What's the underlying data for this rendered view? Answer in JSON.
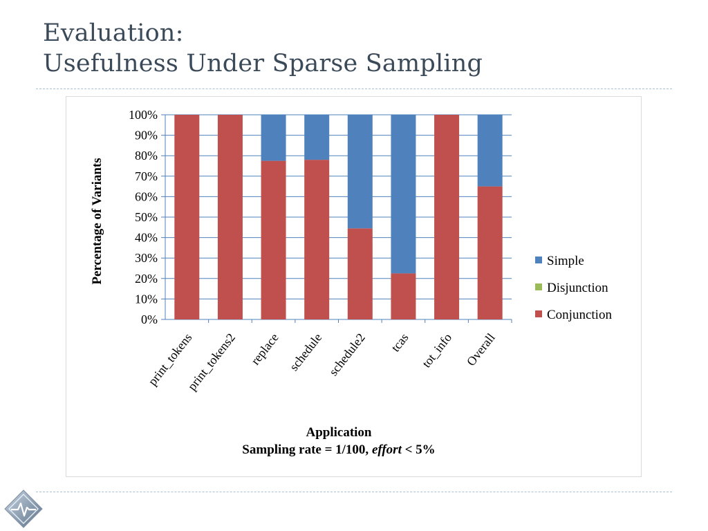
{
  "slide": {
    "title_line1": "Evaluation:",
    "title_line2": "Usefulness Under Sparse Sampling"
  },
  "chart_data": {
    "type": "bar",
    "stacked": true,
    "categories": [
      "print_tokens",
      "print_tokens2",
      "replace",
      "schedule",
      "schedule2",
      "tcas",
      "tot_info",
      "Overall"
    ],
    "series": [
      {
        "name": "Conjunction",
        "color": "#c0504d",
        "values": [
          100,
          100,
          77.5,
          78,
          44.5,
          22.5,
          100,
          65
        ]
      },
      {
        "name": "Disjunction",
        "color": "#9bbb59",
        "values": [
          0,
          0,
          0,
          0,
          0,
          0,
          0,
          0
        ]
      },
      {
        "name": "Simple",
        "color": "#4f81bd",
        "values": [
          0,
          0,
          22.5,
          22,
          55.5,
          77.5,
          0,
          35
        ]
      }
    ],
    "legend_order": [
      "Simple",
      "Disjunction",
      "Conjunction"
    ],
    "legend_position": "right",
    "ylabel": "Percentage of Variants",
    "xlabel_line1": "Application",
    "xlabel_line2_prefix": "Sampling rate = 1/100, ",
    "xlabel_line2_italic": "effort",
    "xlabel_line2_suffix": " < 5%",
    "ylim": [
      0,
      100
    ],
    "yticks": [
      0,
      10,
      20,
      30,
      40,
      50,
      60,
      70,
      80,
      90,
      100
    ],
    "ytick_suffix": "%",
    "grid": true,
    "grid_color": "#4f81bd"
  }
}
